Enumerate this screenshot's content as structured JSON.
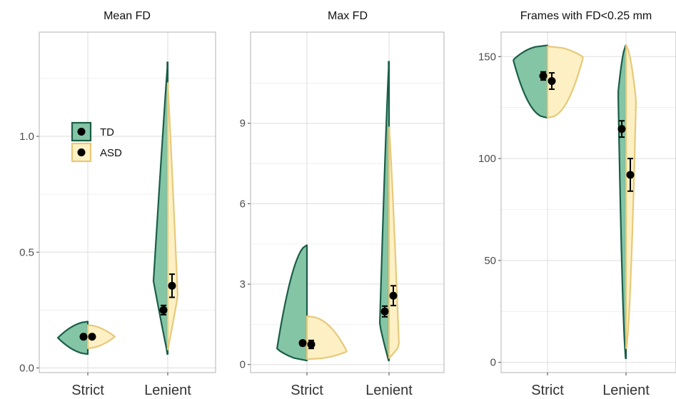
{
  "colors": {
    "TD": "#1a5e47",
    "TD_fill": "#84c5a6",
    "ASD": "#e6c97a",
    "ASD_fill": "#fdf0c4",
    "grid": "#dddddd",
    "panel_border": "#b3b3b3",
    "point": "#000000"
  },
  "legend": {
    "placement": "inside-left-top",
    "items": [
      {
        "label": "TD",
        "key": "TD"
      },
      {
        "label": "ASD",
        "key": "ASD"
      }
    ]
  },
  "chart_data": [
    {
      "type": "split-violin",
      "title": "Mean FD",
      "categories": [
        "Strict",
        "Lenient"
      ],
      "ylim": [
        -0.02,
        1.45
      ],
      "yticks": [
        0.0,
        0.5,
        1.0
      ],
      "ytick_labels": [
        "0.0",
        "0.5",
        "1.0"
      ],
      "grid": true,
      "series": [
        {
          "name": "TD",
          "category": "Strict",
          "range": [
            0.06,
            0.2
          ],
          "mean": 0.135,
          "err": [
            0.125,
            0.145
          ]
        },
        {
          "name": "ASD",
          "category": "Strict",
          "range": [
            0.085,
            0.185
          ],
          "mean": 0.135,
          "err": [
            0.128,
            0.142
          ]
        },
        {
          "name": "TD",
          "category": "Lenient",
          "range": [
            0.06,
            1.32
          ],
          "mean": 0.25,
          "err": [
            0.23,
            0.27
          ]
        },
        {
          "name": "ASD",
          "category": "Lenient",
          "range": [
            0.08,
            1.23
          ],
          "mean": 0.355,
          "err": [
            0.305,
            0.405
          ]
        }
      ]
    },
    {
      "type": "split-violin",
      "title": "Max FD",
      "categories": [
        "Strict",
        "Lenient"
      ],
      "ylim": [
        -0.3,
        12.4
      ],
      "yticks": [
        0,
        3,
        6,
        9
      ],
      "ytick_labels": [
        "0",
        "3",
        "6",
        "9"
      ],
      "grid": true,
      "series": [
        {
          "name": "TD",
          "category": "Strict",
          "range": [
            0.15,
            4.45
          ],
          "mean": 0.8,
          "err": [
            0.72,
            0.88
          ]
        },
        {
          "name": "ASD",
          "category": "Strict",
          "range": [
            0.2,
            1.8
          ],
          "mean": 0.75,
          "err": [
            0.6,
            0.9
          ]
        },
        {
          "name": "TD",
          "category": "Lenient",
          "range": [
            0.15,
            11.3
          ],
          "mean": 1.98,
          "err": [
            1.78,
            2.18
          ]
        },
        {
          "name": "ASD",
          "category": "Lenient",
          "range": [
            0.25,
            8.85
          ],
          "mean": 2.57,
          "err": [
            2.2,
            2.94
          ]
        }
      ]
    },
    {
      "type": "split-violin",
      "title": "Frames with FD<0.25 mm",
      "categories": [
        "Strict",
        "Lenient"
      ],
      "ylim": [
        -5,
        162
      ],
      "yticks": [
        0,
        50,
        100,
        150
      ],
      "ytick_labels": [
        "0",
        "50",
        "100",
        "150"
      ],
      "grid": true,
      "series": [
        {
          "name": "TD",
          "category": "Strict",
          "range": [
            120,
            155.5
          ],
          "mean": 140.5,
          "err": [
            138.5,
            142.5
          ]
        },
        {
          "name": "ASD",
          "category": "Strict",
          "range": [
            120,
            155
          ],
          "mean": 138,
          "err": [
            134,
            142
          ]
        },
        {
          "name": "TD",
          "category": "Lenient",
          "range": [
            2,
            155.5
          ],
          "mean": 114.5,
          "err": [
            110.5,
            118.5
          ]
        },
        {
          "name": "ASD",
          "category": "Lenient",
          "range": [
            7,
            155.5
          ],
          "mean": 92,
          "err": [
            84,
            100
          ]
        }
      ]
    }
  ]
}
